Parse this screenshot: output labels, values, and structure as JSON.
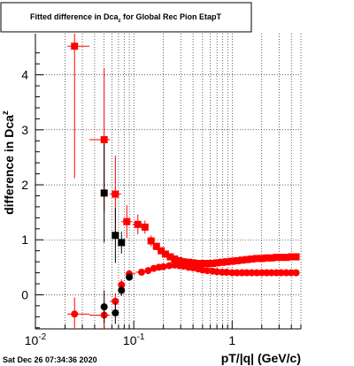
{
  "title": {
    "main": "Fitted difference in Dca",
    "sub": "z",
    "rest": " for Global Rec Pion EtapT"
  },
  "timestamp": "Sat Dec 26 07:34:36 2020",
  "chart_data": {
    "type": "scatter",
    "title": "Fitted difference in Dca_z for Global Rec Pion EtapT",
    "xlabel": "pT/|q| (GeV/c)",
    "ylabel": "difference in Dca",
    "ylabel_sub": "z",
    "xscale": "log",
    "xlim": [
      0.01,
      5.0
    ],
    "ylim": [
      -0.62,
      4.75
    ],
    "grid": true,
    "x_ticks": [
      {
        "value": 0.01,
        "base": "10",
        "exp": "-2"
      },
      {
        "value": 0.1,
        "base": "10",
        "exp": "-1"
      },
      {
        "value": 1,
        "base": "1",
        "exp": ""
      }
    ],
    "y_ticks": [
      0,
      1,
      2,
      3,
      4
    ],
    "colors": {
      "red": "#ff0000",
      "black": "#000000"
    },
    "series": [
      {
        "marker": "square",
        "color": "#ff0000",
        "points": [
          [
            0.025,
            4.52,
            2.4
          ],
          [
            0.05,
            2.82,
            1.3
          ],
          [
            0.065,
            1.83,
            0.7
          ],
          [
            0.085,
            1.33,
            0.3
          ],
          [
            0.11,
            1.28,
            0.18
          ],
          [
            0.13,
            1.23,
            0.12
          ],
          [
            0.15,
            0.98,
            0.1
          ],
          [
            0.17,
            0.88,
            0.07
          ],
          [
            0.19,
            0.8,
            0.06
          ],
          [
            0.21,
            0.74,
            0.05
          ],
          [
            0.235,
            0.69,
            0.04
          ],
          [
            0.26,
            0.65,
            0.04
          ],
          [
            0.29,
            0.62,
            0.03
          ],
          [
            0.32,
            0.6,
            0.03
          ],
          [
            0.36,
            0.59,
            0.03
          ],
          [
            0.4,
            0.58,
            0.03
          ],
          [
            0.45,
            0.57,
            0.03
          ],
          [
            0.5,
            0.57,
            0.03
          ],
          [
            0.56,
            0.57,
            0.03
          ],
          [
            0.63,
            0.57,
            0.03
          ],
          [
            0.7,
            0.58,
            0.03
          ],
          [
            0.79,
            0.59,
            0.03
          ],
          [
            0.88,
            0.6,
            0.03
          ],
          [
            1.0,
            0.61,
            0.03
          ],
          [
            1.12,
            0.62,
            0.03
          ],
          [
            1.26,
            0.63,
            0.03
          ],
          [
            1.41,
            0.64,
            0.03
          ],
          [
            1.58,
            0.65,
            0.03
          ],
          [
            1.78,
            0.66,
            0.03
          ],
          [
            2.0,
            0.66,
            0.03
          ],
          [
            2.24,
            0.67,
            0.03
          ],
          [
            2.51,
            0.67,
            0.03
          ],
          [
            2.82,
            0.68,
            0.03
          ],
          [
            3.16,
            0.68,
            0.03
          ],
          [
            3.55,
            0.68,
            0.03
          ],
          [
            3.98,
            0.69,
            0.03
          ],
          [
            4.47,
            0.69,
            0.03
          ]
        ]
      },
      {
        "marker": "square",
        "color": "#000000",
        "points": [
          [
            0.05,
            1.85,
            0.9
          ],
          [
            0.065,
            1.08,
            0.5
          ],
          [
            0.075,
            0.95,
            0.2
          ]
        ]
      },
      {
        "marker": "circle",
        "color": "#ff0000",
        "points": [
          [
            0.025,
            -0.35,
            0.3
          ],
          [
            0.05,
            -0.37,
            0.25
          ],
          [
            0.065,
            -0.12,
            0.15
          ],
          [
            0.075,
            0.18,
            0.1
          ],
          [
            0.09,
            0.38,
            0.05
          ],
          [
            0.12,
            0.41,
            0.04
          ],
          [
            0.14,
            0.44,
            0.03
          ],
          [
            0.16,
            0.48,
            0.03
          ],
          [
            0.18,
            0.5,
            0.03
          ],
          [
            0.2,
            0.51,
            0.03
          ],
          [
            0.23,
            0.53,
            0.03
          ],
          [
            0.26,
            0.54,
            0.03
          ],
          [
            0.29,
            0.53,
            0.03
          ],
          [
            0.32,
            0.52,
            0.03
          ],
          [
            0.36,
            0.5,
            0.03
          ],
          [
            0.4,
            0.49,
            0.03
          ],
          [
            0.45,
            0.47,
            0.03
          ],
          [
            0.5,
            0.45,
            0.03
          ],
          [
            0.56,
            0.44,
            0.03
          ],
          [
            0.63,
            0.43,
            0.03
          ],
          [
            0.7,
            0.42,
            0.03
          ],
          [
            0.79,
            0.41,
            0.03
          ],
          [
            0.88,
            0.41,
            0.03
          ],
          [
            1.0,
            0.4,
            0.03
          ],
          [
            1.12,
            0.4,
            0.03
          ],
          [
            1.26,
            0.4,
            0.03
          ],
          [
            1.41,
            0.4,
            0.03
          ],
          [
            1.58,
            0.4,
            0.03
          ],
          [
            1.78,
            0.4,
            0.03
          ],
          [
            2.0,
            0.4,
            0.03
          ],
          [
            2.24,
            0.4,
            0.03
          ],
          [
            2.51,
            0.4,
            0.03
          ],
          [
            2.82,
            0.4,
            0.03
          ],
          [
            3.16,
            0.4,
            0.03
          ],
          [
            3.55,
            0.4,
            0.03
          ],
          [
            3.98,
            0.4,
            0.03
          ],
          [
            4.47,
            0.4,
            0.03
          ]
        ]
      },
      {
        "marker": "circle",
        "color": "#000000",
        "points": [
          [
            0.05,
            -0.22,
            0.3
          ],
          [
            0.065,
            -0.33,
            0.2
          ],
          [
            0.075,
            0.08,
            0.1
          ],
          [
            0.09,
            0.32,
            0.05
          ]
        ]
      }
    ]
  }
}
